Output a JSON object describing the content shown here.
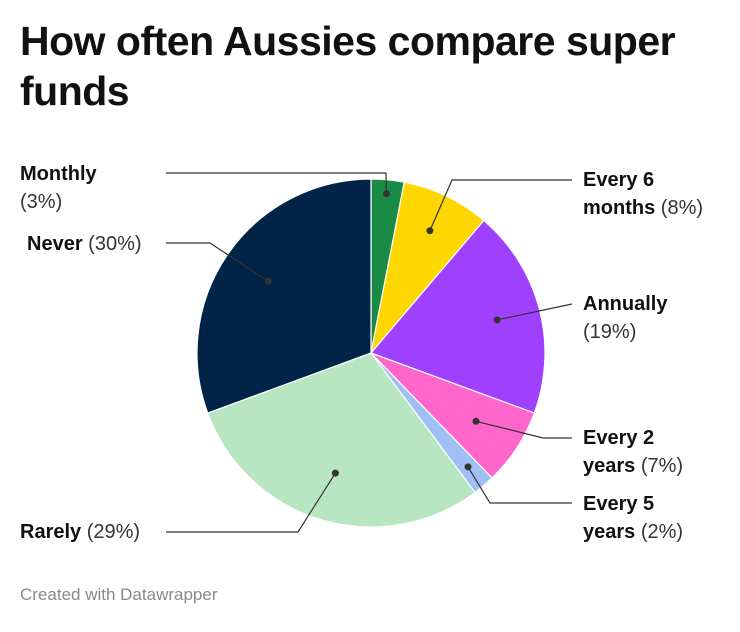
{
  "title": "How often Aussies compare super funds",
  "footer": "Created with Datawrapper",
  "chart_data": {
    "type": "pie",
    "title": "How often Aussies compare super funds",
    "slices": [
      {
        "label": "Monthly",
        "value": 3,
        "value_text": "(3%)",
        "color": "#1a8a47"
      },
      {
        "label": "Every 6 months",
        "label_line1": "Every 6",
        "label_line2": "months",
        "value": 8,
        "value_text": "(8%)",
        "color": "#ffd700"
      },
      {
        "label": "Annually",
        "value": 19,
        "value_text": "(19%)",
        "color": "#a040ff"
      },
      {
        "label": "Every 2 years",
        "label_line1": "Every 2",
        "label_line2": "years",
        "value": 7,
        "value_text": "(7%)",
        "color": "#ff66cc"
      },
      {
        "label": "Every 5 years",
        "label_line1": "Every 5",
        "label_line2": "years",
        "value": 2,
        "value_text": "(2%)",
        "color": "#9fbff5"
      },
      {
        "label": "Rarely",
        "value": 29,
        "value_text": "(29%)",
        "color": "#b8e6c1"
      },
      {
        "label": "Never",
        "value": 30,
        "value_text": "(30%)",
        "color": "#002447"
      }
    ],
    "start_angle": "12 o'clock, clockwise",
    "legend": "none (direct labels with leader lines)"
  }
}
